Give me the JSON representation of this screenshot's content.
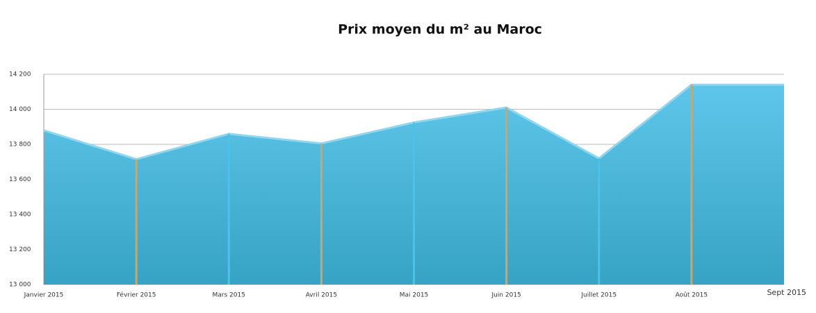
{
  "chart_data": {
    "type": "area",
    "title": "Prix moyen du m² au Maroc",
    "categories": [
      "Janvier 2015",
      "Février 2015",
      "Mars 2015",
      "Avril 2015",
      "Mai 2015",
      "Juin 2015",
      "Juillet 2015",
      "Août 2015",
      "Sept 2015"
    ],
    "values": [
      13880,
      13715,
      13860,
      13805,
      13925,
      14010,
      13720,
      14140,
      14140
    ],
    "color": "#4dbde3",
    "ylim": [
      13000,
      14200
    ],
    "yticks": [
      {
        "value": 13000,
        "label": "13 000"
      },
      {
        "value": 13200,
        "label": "13 200"
      },
      {
        "value": 13400,
        "label": "13 400"
      },
      {
        "value": 13600,
        "label": "13 600"
      },
      {
        "value": 13800,
        "label": "13 800"
      },
      {
        "value": 14000,
        "label": "14 000"
      },
      {
        "value": 14200,
        "label": "14 200"
      }
    ],
    "grid": true
  }
}
